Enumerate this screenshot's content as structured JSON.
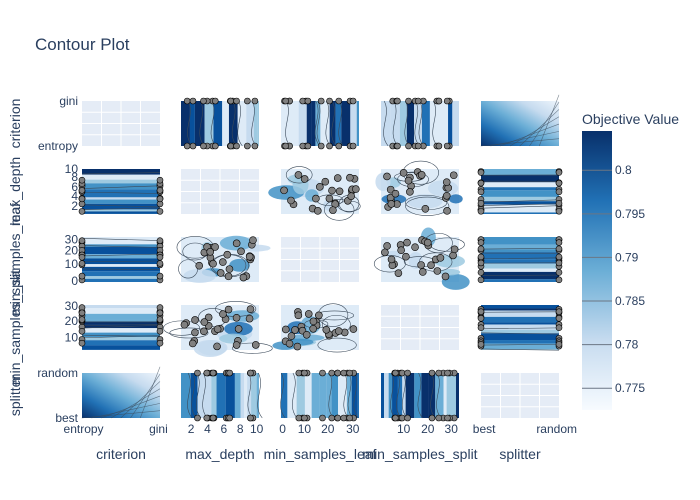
{
  "chart_data": {
    "type": "contour",
    "title": "Contour Plot",
    "parameters": [
      "criterion",
      "max_depth",
      "min_samples_leaf",
      "min_samples_split",
      "splitter"
    ],
    "axis_ticks": {
      "criterion": [
        "entropy",
        "gini"
      ],
      "max_depth": [
        "2",
        "4",
        "6",
        "8",
        "10"
      ],
      "min_samples_leaf": [
        "0",
        "10",
        "20",
        "30"
      ],
      "min_samples_split": [
        "10",
        "20",
        "30"
      ],
      "splitter": [
        "best",
        "random"
      ]
    },
    "row_ticks": {
      "criterion": [
        "gini",
        "entropy"
      ],
      "max_depth": [
        "10",
        "8",
        "6",
        "4",
        "2"
      ],
      "min_samples_leaf": [
        "30",
        "20",
        "10",
        "0"
      ],
      "min_samples_split": [
        "30",
        "20",
        "10"
      ],
      "splitter": [
        "random",
        "best"
      ]
    },
    "colorbar": {
      "title": "Objective Value",
      "ticks": [
        "0.8",
        "0.795",
        "0.79",
        "0.785",
        "0.78",
        "0.775"
      ],
      "range": [
        0.7725,
        0.8045
      ],
      "colorscale": "Blues"
    },
    "colors": {
      "accent": "#08306b",
      "trial_marker": "#808080",
      "panel_bg": "#e5ecf6"
    }
  }
}
